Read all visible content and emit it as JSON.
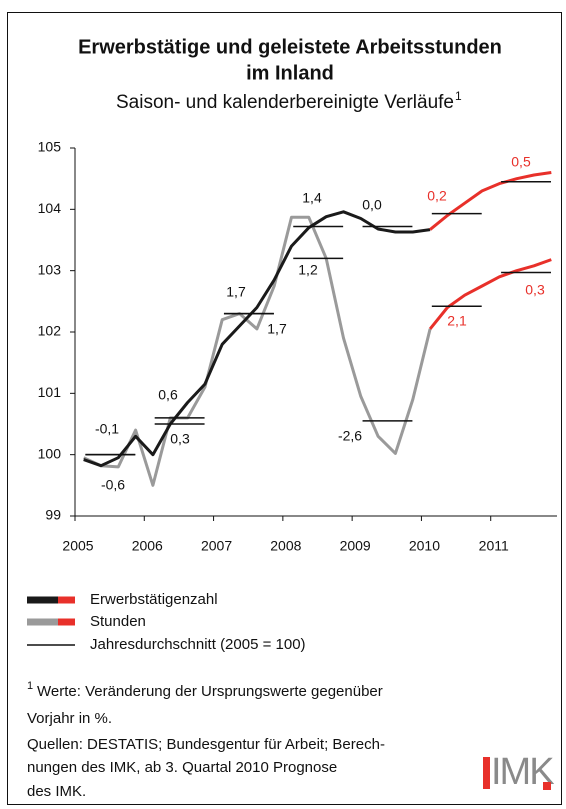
{
  "chart_data": {
    "type": "line",
    "title_lines": [
      "Erwerbstätige und geleistete Arbeitsstunden",
      "im Inland"
    ],
    "subtitle": "Saison- und kalenderbereinigte Verläufe",
    "subtitle_note": "1",
    "x": [
      2005.125,
      2005.375,
      2005.625,
      2005.875,
      2006.125,
      2006.375,
      2006.625,
      2006.875,
      2007.125,
      2007.375,
      2007.625,
      2007.875,
      2008.125,
      2008.375,
      2008.625,
      2008.875,
      2009.125,
      2009.375,
      2009.625,
      2009.875,
      2010.125,
      2010.375,
      2010.625,
      2010.875,
      2011.125,
      2011.375,
      2011.625,
      2011.875
    ],
    "series": [
      {
        "name": "Erwerbstätigenzahl",
        "color": "#1a1a1a",
        "forecast_color": "#e8302a",
        "values": [
          99.92,
          99.82,
          99.95,
          100.3,
          100.0,
          100.5,
          100.85,
          101.15,
          101.8,
          102.1,
          102.4,
          102.85,
          103.4,
          103.7,
          103.88,
          103.96,
          103.85,
          103.68,
          103.63,
          103.63,
          103.67,
          null,
          null,
          null,
          null,
          null,
          null,
          null
        ],
        "forecast": [
          null,
          null,
          null,
          null,
          null,
          null,
          null,
          null,
          null,
          null,
          null,
          null,
          null,
          null,
          null,
          null,
          null,
          null,
          null,
          null,
          103.67,
          103.9,
          104.1,
          104.3,
          104.42,
          104.5,
          104.56,
          104.6
        ],
        "annual": [
          100.0,
          100.6,
          102.3,
          103.72,
          103.72,
          103.93,
          104.45
        ],
        "growth": [
          -0.1,
          0.6,
          1.7,
          1.4,
          0.0,
          0.2,
          0.5
        ],
        "growth_labels": [
          "-0,1",
          "0,6",
          "1,7",
          "1,4",
          "0,0",
          "0,2",
          "0,5"
        ],
        "growth_colors": [
          "#111111",
          "#111111",
          "#111111",
          "#111111",
          "#111111",
          "#e8302a",
          "#e8302a"
        ]
      },
      {
        "name": "Stunden",
        "color": "#9a9a9a",
        "forecast_color": "#e8302a",
        "values": [
          99.95,
          99.82,
          99.8,
          100.4,
          99.5,
          100.6,
          100.6,
          101.1,
          102.2,
          102.3,
          102.05,
          102.75,
          103.87,
          103.87,
          103.2,
          101.9,
          100.95,
          100.3,
          100.02,
          100.9,
          102.05,
          null,
          null,
          null,
          null,
          null,
          null,
          null
        ],
        "forecast": [
          null,
          null,
          null,
          null,
          null,
          null,
          null,
          null,
          null,
          null,
          null,
          null,
          null,
          null,
          null,
          null,
          null,
          null,
          null,
          null,
          102.05,
          102.4,
          102.6,
          102.75,
          102.9,
          103.0,
          103.08,
          103.18
        ],
        "annual": [
          100.0,
          100.5,
          102.3,
          103.2,
          100.55,
          102.42,
          102.97
        ],
        "growth": [
          -0.6,
          0.3,
          1.7,
          1.2,
          -2.6,
          2.1,
          0.3
        ],
        "growth_labels": [
          "-0,6",
          "0,3",
          "1,7",
          "1,2",
          "-2,6",
          "2,1",
          "0,3"
        ],
        "growth_colors": [
          "#111111",
          "#111111",
          "#111111",
          "#111111",
          "#111111",
          "#e8302a",
          "#e8302a"
        ]
      }
    ],
    "annual_years": [
      2005,
      2006,
      2007,
      2008,
      2009,
      2010,
      2011
    ],
    "annual_name": "Jahresdurchschnitt (2005 = 100)",
    "annual_color": "#111111",
    "xlim": [
      2005,
      2012
    ],
    "xticks": [
      2005,
      2006,
      2007,
      2008,
      2009,
      2010,
      2011
    ],
    "ylim": [
      99,
      105
    ],
    "yticks": [
      99,
      100,
      101,
      102,
      103,
      104,
      105
    ],
    "footnote": {
      "marker": "1",
      "lines": [
        "Werte: Veränderung der Ursprungswerte  gegenüber",
        "Vorjahr in %.",
        "Quellen: DESTATIS; Bundesgentur für Arbeit; Berech-",
        "nungen des IMK, ab 3. Quartal 2010 Prognose",
        "des IMK."
      ]
    },
    "logo": "IMK"
  }
}
